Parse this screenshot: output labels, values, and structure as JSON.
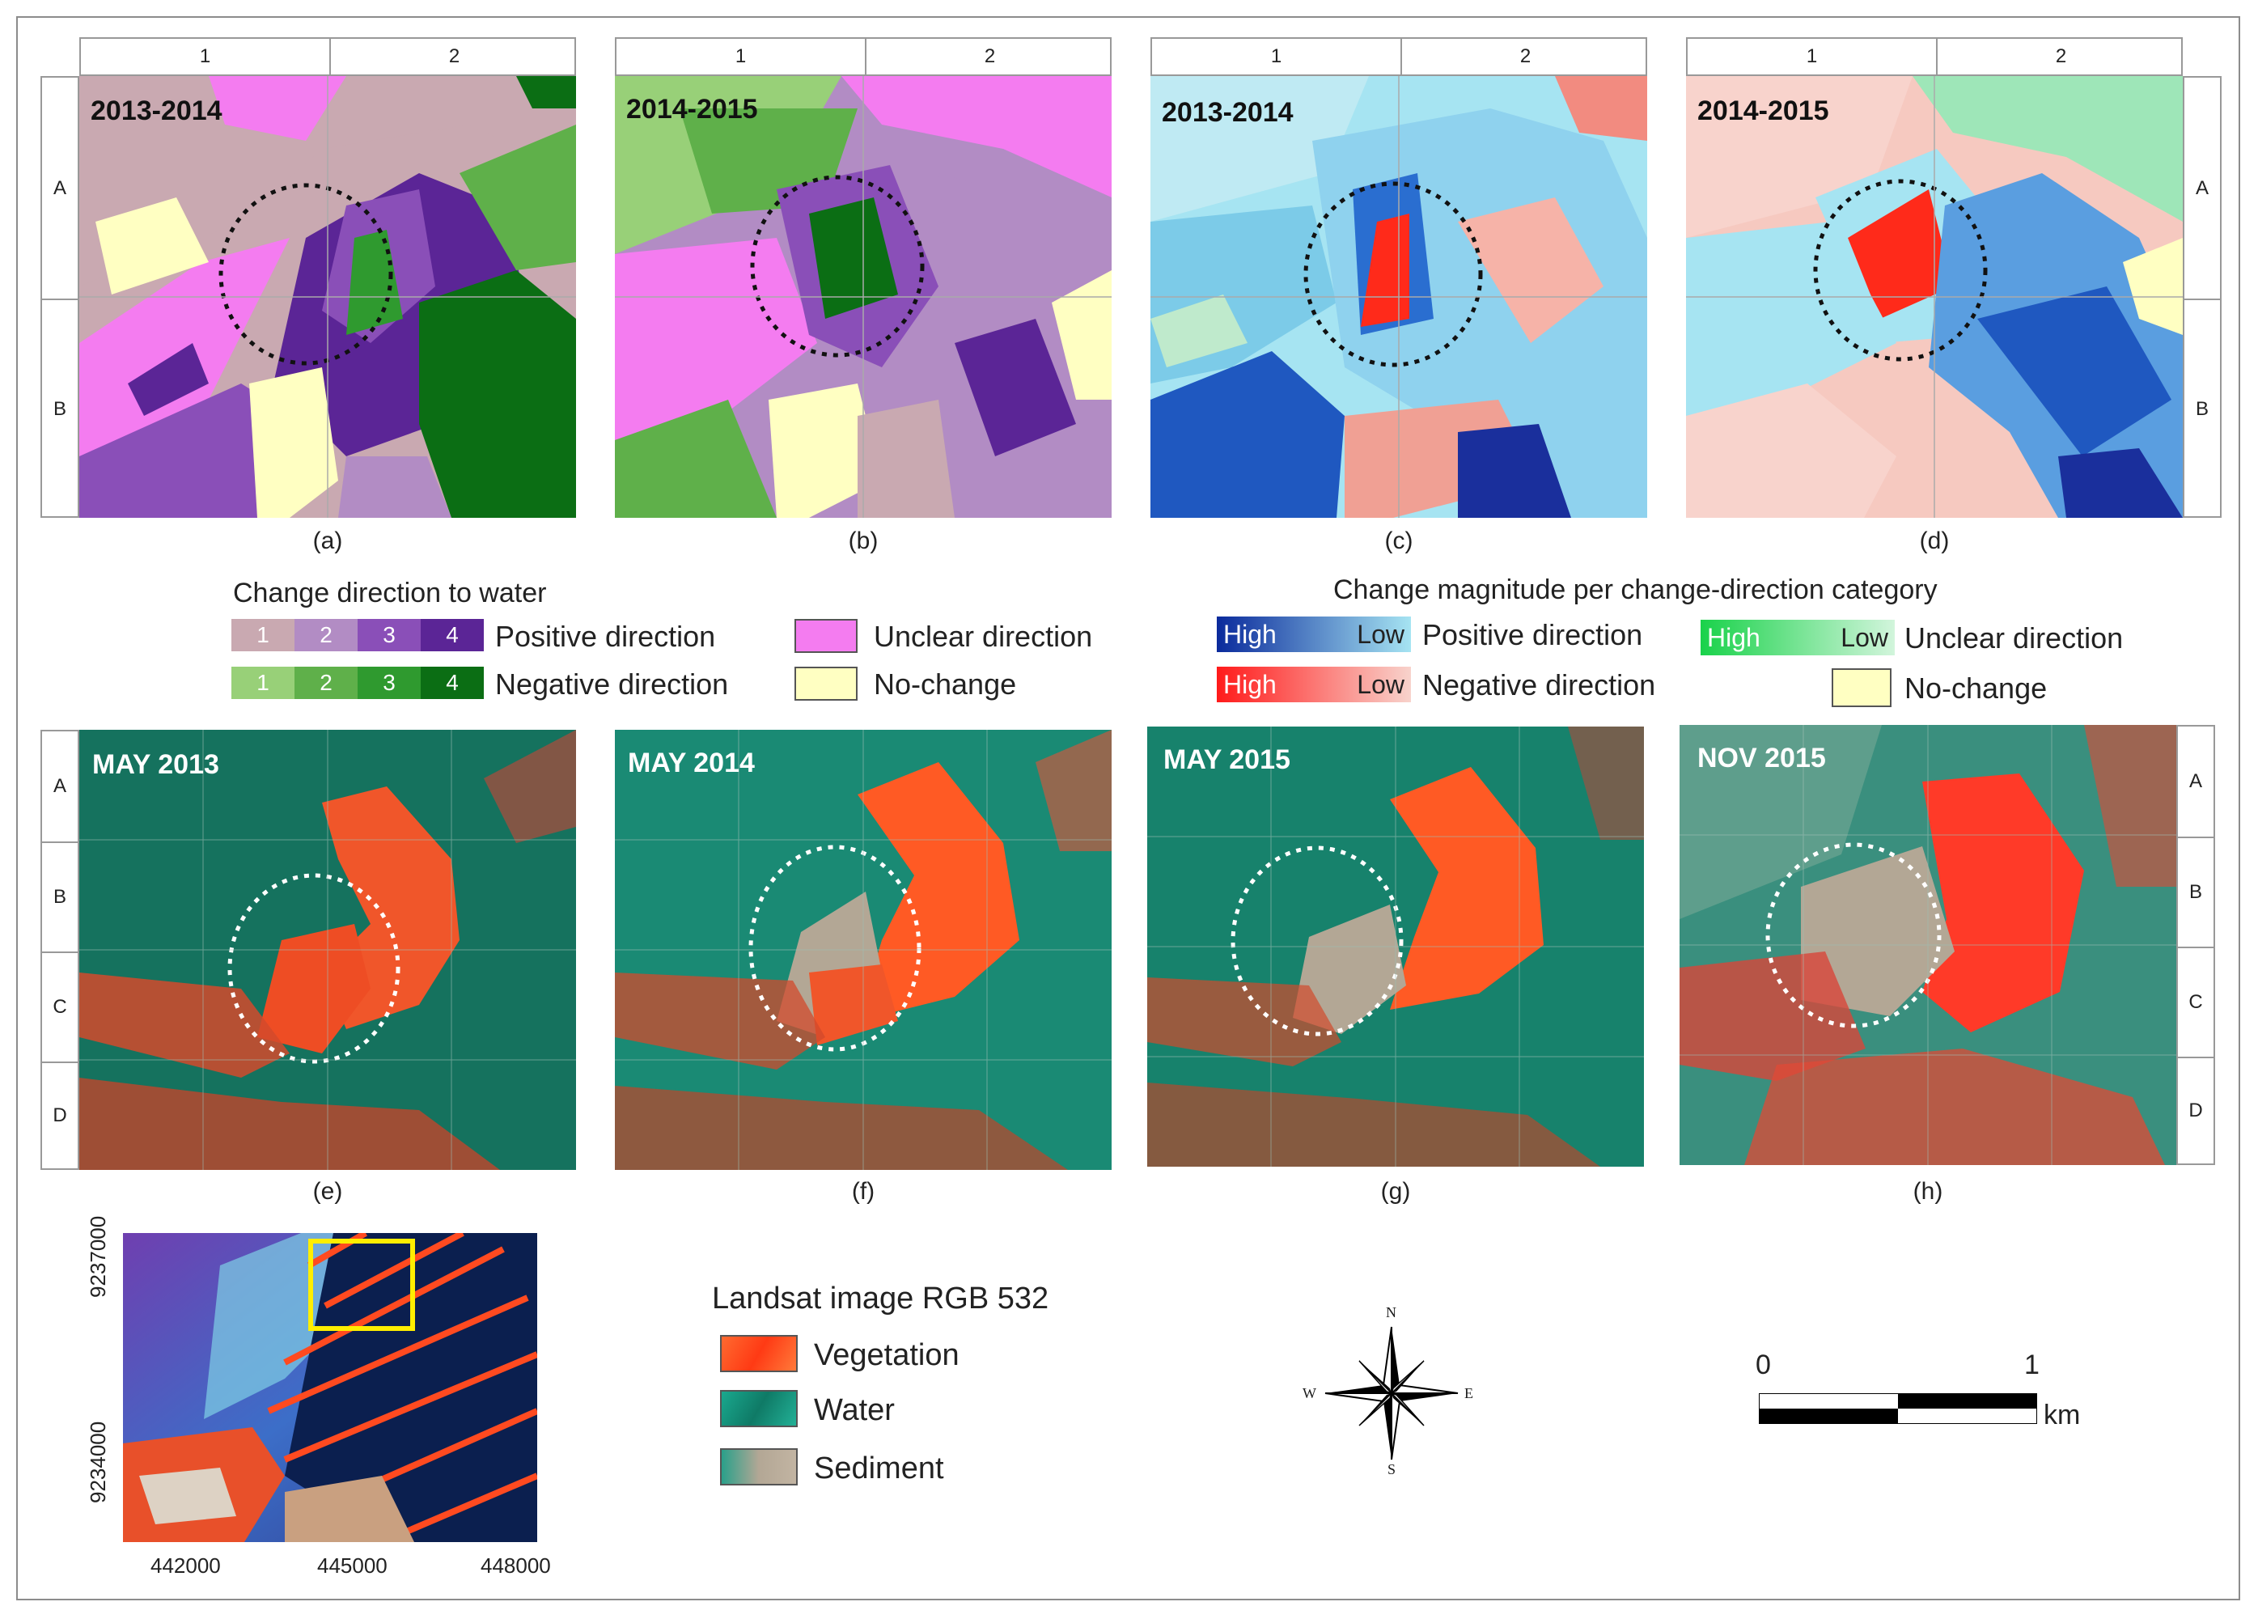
{
  "colors": {
    "pos1": "#c9a9b1",
    "pos2": "#b28cc4",
    "pos3": "#8a4fb8",
    "pos4": "#5b2596",
    "neg1": "#98d078",
    "neg2": "#5fb04a",
    "neg3": "#2f9a2f",
    "neg4": "#0b6e14",
    "unclear": "#f47cf0",
    "nochange": "#ffffc2",
    "mag_pos_high": "#0a2a9c",
    "mag_pos_low": "#a6e4f2",
    "mag_neg_high": "#ff1a1a",
    "mag_neg_low": "#f8d3cc",
    "mag_unc_high": "#19d24a",
    "mag_unc_low": "#d2f5dc",
    "vegetation": "#ff4a20",
    "water": "#149a82",
    "sediment": "#b3a795"
  },
  "panels_top": [
    {
      "title": "2013-2014",
      "label": "(a)"
    },
    {
      "title": "2014-2015",
      "label": "(b)"
    },
    {
      "title": "2013-2014",
      "label": "(c)"
    },
    {
      "title": "2014-2015",
      "label": "(d)"
    }
  ],
  "panels_bottom": [
    {
      "title": "MAY 2013",
      "label": "(e)"
    },
    {
      "title": "MAY 2014",
      "label": "(f)"
    },
    {
      "title": "MAY 2015",
      "label": "(g)"
    },
    {
      "title": "NOV 2015",
      "label": "(h)"
    }
  ],
  "grid_top": {
    "cols": [
      "1",
      "2"
    ],
    "rows": [
      "A",
      "B"
    ]
  },
  "grid_bottom": {
    "rows": [
      "A",
      "B",
      "C",
      "D"
    ]
  },
  "legend_direction": {
    "title": "Change direction to water",
    "levels": [
      "1",
      "2",
      "3",
      "4"
    ],
    "positive": "Positive direction",
    "negative": "Negative direction",
    "unclear": "Unclear direction",
    "nochange": "No-change"
  },
  "legend_magnitude": {
    "title": "Change magnitude per change-direction category",
    "high": "High",
    "low": "Low",
    "positive": "Positive direction",
    "negative": "Negative direction",
    "unclear": "Unclear direction",
    "nochange": "No-change"
  },
  "legend_landsat": {
    "title": "Landsat image RGB 532",
    "vegetation": "Vegetation",
    "water": "Water",
    "sediment": "Sediment"
  },
  "overview": {
    "y_ticks": [
      "9237000",
      "9234000"
    ],
    "x_ticks": [
      "442000",
      "445000",
      "448000"
    ]
  },
  "north_arrow": {
    "n": "N",
    "s": "S",
    "e": "E",
    "w": "W"
  },
  "scale_bar": {
    "start": "0",
    "end": "1",
    "unit": "km"
  }
}
